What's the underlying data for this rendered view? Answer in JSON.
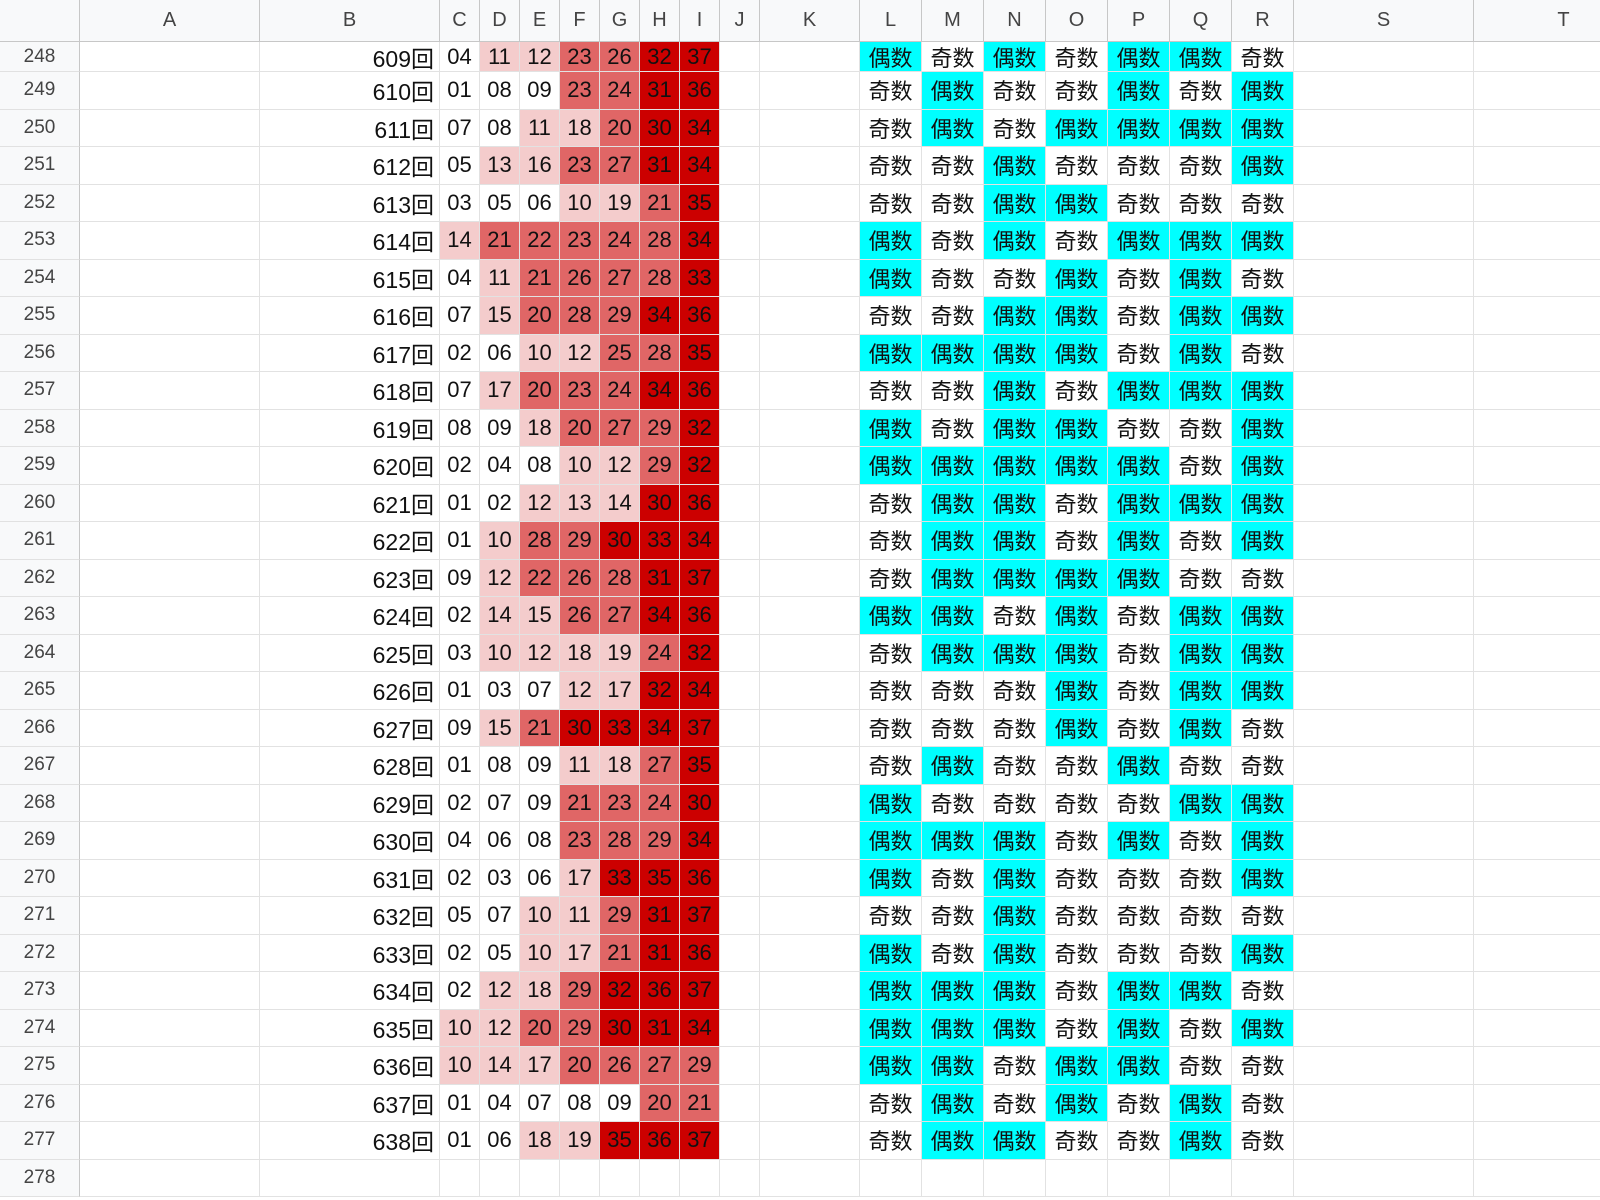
{
  "sheet": {
    "columns": [
      "A",
      "B",
      "C",
      "D",
      "E",
      "F",
      "G",
      "H",
      "I",
      "J",
      "K",
      "L",
      "M",
      "N",
      "O",
      "P",
      "Q",
      "R",
      "S",
      "T"
    ],
    "row_numbers": [
      248,
      249,
      250,
      251,
      252,
      253,
      254,
      255,
      256,
      257,
      258,
      259,
      260,
      261,
      262,
      263,
      264,
      265,
      266,
      267,
      268,
      269,
      270,
      271,
      272,
      273,
      274,
      275,
      276,
      277,
      278
    ],
    "rows": [
      {
        "draw": "609回",
        "nums": [
          "04",
          "11",
          "12",
          "23",
          "26",
          "32",
          "37"
        ],
        "parity": [
          "偶数",
          "奇数",
          "偶数",
          "奇数",
          "偶数",
          "偶数",
          "奇数"
        ]
      },
      {
        "draw": "610回",
        "nums": [
          "01",
          "08",
          "09",
          "23",
          "24",
          "31",
          "36"
        ],
        "parity": [
          "奇数",
          "偶数",
          "奇数",
          "奇数",
          "偶数",
          "奇数",
          "偶数"
        ]
      },
      {
        "draw": "611回",
        "nums": [
          "07",
          "08",
          "11",
          "18",
          "20",
          "30",
          "34"
        ],
        "parity": [
          "奇数",
          "偶数",
          "奇数",
          "偶数",
          "偶数",
          "偶数",
          "偶数"
        ]
      },
      {
        "draw": "612回",
        "nums": [
          "05",
          "13",
          "16",
          "23",
          "27",
          "31",
          "34"
        ],
        "parity": [
          "奇数",
          "奇数",
          "偶数",
          "奇数",
          "奇数",
          "奇数",
          "偶数"
        ]
      },
      {
        "draw": "613回",
        "nums": [
          "03",
          "05",
          "06",
          "10",
          "19",
          "21",
          "35"
        ],
        "parity": [
          "奇数",
          "奇数",
          "偶数",
          "偶数",
          "奇数",
          "奇数",
          "奇数"
        ]
      },
      {
        "draw": "614回",
        "nums": [
          "14",
          "21",
          "22",
          "23",
          "24",
          "28",
          "34"
        ],
        "parity": [
          "偶数",
          "奇数",
          "偶数",
          "奇数",
          "偶数",
          "偶数",
          "偶数"
        ]
      },
      {
        "draw": "615回",
        "nums": [
          "04",
          "11",
          "21",
          "26",
          "27",
          "28",
          "33"
        ],
        "parity": [
          "偶数",
          "奇数",
          "奇数",
          "偶数",
          "奇数",
          "偶数",
          "奇数"
        ]
      },
      {
        "draw": "616回",
        "nums": [
          "07",
          "15",
          "20",
          "28",
          "29",
          "34",
          "36"
        ],
        "parity": [
          "奇数",
          "奇数",
          "偶数",
          "偶数",
          "奇数",
          "偶数",
          "偶数"
        ]
      },
      {
        "draw": "617回",
        "nums": [
          "02",
          "06",
          "10",
          "12",
          "25",
          "28",
          "35"
        ],
        "parity": [
          "偶数",
          "偶数",
          "偶数",
          "偶数",
          "奇数",
          "偶数",
          "奇数"
        ]
      },
      {
        "draw": "618回",
        "nums": [
          "07",
          "17",
          "20",
          "23",
          "24",
          "34",
          "36"
        ],
        "parity": [
          "奇数",
          "奇数",
          "偶数",
          "奇数",
          "偶数",
          "偶数",
          "偶数"
        ]
      },
      {
        "draw": "619回",
        "nums": [
          "08",
          "09",
          "18",
          "20",
          "27",
          "29",
          "32"
        ],
        "parity": [
          "偶数",
          "奇数",
          "偶数",
          "偶数",
          "奇数",
          "奇数",
          "偶数"
        ]
      },
      {
        "draw": "620回",
        "nums": [
          "02",
          "04",
          "08",
          "10",
          "12",
          "29",
          "32"
        ],
        "parity": [
          "偶数",
          "偶数",
          "偶数",
          "偶数",
          "偶数",
          "奇数",
          "偶数"
        ]
      },
      {
        "draw": "621回",
        "nums": [
          "01",
          "02",
          "12",
          "13",
          "14",
          "30",
          "36"
        ],
        "parity": [
          "奇数",
          "偶数",
          "偶数",
          "奇数",
          "偶数",
          "偶数",
          "偶数"
        ]
      },
      {
        "draw": "622回",
        "nums": [
          "01",
          "10",
          "28",
          "29",
          "30",
          "33",
          "34"
        ],
        "parity": [
          "奇数",
          "偶数",
          "偶数",
          "奇数",
          "偶数",
          "奇数",
          "偶数"
        ]
      },
      {
        "draw": "623回",
        "nums": [
          "09",
          "12",
          "22",
          "26",
          "28",
          "31",
          "37"
        ],
        "parity": [
          "奇数",
          "偶数",
          "偶数",
          "偶数",
          "偶数",
          "奇数",
          "奇数"
        ]
      },
      {
        "draw": "624回",
        "nums": [
          "02",
          "14",
          "15",
          "26",
          "27",
          "34",
          "36"
        ],
        "parity": [
          "偶数",
          "偶数",
          "奇数",
          "偶数",
          "奇数",
          "偶数",
          "偶数"
        ]
      },
      {
        "draw": "625回",
        "nums": [
          "03",
          "10",
          "12",
          "18",
          "19",
          "24",
          "32"
        ],
        "parity": [
          "奇数",
          "偶数",
          "偶数",
          "偶数",
          "奇数",
          "偶数",
          "偶数"
        ]
      },
      {
        "draw": "626回",
        "nums": [
          "01",
          "03",
          "07",
          "12",
          "17",
          "32",
          "34"
        ],
        "parity": [
          "奇数",
          "奇数",
          "奇数",
          "偶数",
          "奇数",
          "偶数",
          "偶数"
        ]
      },
      {
        "draw": "627回",
        "nums": [
          "09",
          "15",
          "21",
          "30",
          "33",
          "34",
          "37"
        ],
        "parity": [
          "奇数",
          "奇数",
          "奇数",
          "偶数",
          "奇数",
          "偶数",
          "奇数"
        ]
      },
      {
        "draw": "628回",
        "nums": [
          "01",
          "08",
          "09",
          "11",
          "18",
          "27",
          "35"
        ],
        "parity": [
          "奇数",
          "偶数",
          "奇数",
          "奇数",
          "偶数",
          "奇数",
          "奇数"
        ]
      },
      {
        "draw": "629回",
        "nums": [
          "02",
          "07",
          "09",
          "21",
          "23",
          "24",
          "30"
        ],
        "parity": [
          "偶数",
          "奇数",
          "奇数",
          "奇数",
          "奇数",
          "偶数",
          "偶数"
        ]
      },
      {
        "draw": "630回",
        "nums": [
          "04",
          "06",
          "08",
          "23",
          "28",
          "29",
          "34"
        ],
        "parity": [
          "偶数",
          "偶数",
          "偶数",
          "奇数",
          "偶数",
          "奇数",
          "偶数"
        ]
      },
      {
        "draw": "631回",
        "nums": [
          "02",
          "03",
          "06",
          "17",
          "33",
          "35",
          "36"
        ],
        "parity": [
          "偶数",
          "奇数",
          "偶数",
          "奇数",
          "奇数",
          "奇数",
          "偶数"
        ]
      },
      {
        "draw": "632回",
        "nums": [
          "05",
          "07",
          "10",
          "11",
          "29",
          "31",
          "37"
        ],
        "parity": [
          "奇数",
          "奇数",
          "偶数",
          "奇数",
          "奇数",
          "奇数",
          "奇数"
        ]
      },
      {
        "draw": "633回",
        "nums": [
          "02",
          "05",
          "10",
          "17",
          "21",
          "31",
          "36"
        ],
        "parity": [
          "偶数",
          "奇数",
          "偶数",
          "奇数",
          "奇数",
          "奇数",
          "偶数"
        ]
      },
      {
        "draw": "634回",
        "nums": [
          "02",
          "12",
          "18",
          "29",
          "32",
          "36",
          "37"
        ],
        "parity": [
          "偶数",
          "偶数",
          "偶数",
          "奇数",
          "偶数",
          "偶数",
          "奇数"
        ]
      },
      {
        "draw": "635回",
        "nums": [
          "10",
          "12",
          "20",
          "29",
          "30",
          "31",
          "34"
        ],
        "parity": [
          "偶数",
          "偶数",
          "偶数",
          "奇数",
          "偶数",
          "奇数",
          "偶数"
        ]
      },
      {
        "draw": "636回",
        "nums": [
          "10",
          "14",
          "17",
          "20",
          "26",
          "27",
          "29"
        ],
        "parity": [
          "偶数",
          "偶数",
          "奇数",
          "偶数",
          "偶数",
          "奇数",
          "奇数"
        ]
      },
      {
        "draw": "637回",
        "nums": [
          "01",
          "04",
          "07",
          "08",
          "09",
          "20",
          "21"
        ],
        "parity": [
          "奇数",
          "偶数",
          "奇数",
          "偶数",
          "奇数",
          "偶数",
          "奇数"
        ]
      },
      {
        "draw": "638回",
        "nums": [
          "01",
          "06",
          "18",
          "19",
          "35",
          "36",
          "37"
        ],
        "parity": [
          "奇数",
          "偶数",
          "偶数",
          "奇数",
          "奇数",
          "偶数",
          "奇数"
        ]
      }
    ]
  },
  "colors": {
    "even_fill": "#00ffff",
    "odd_fill": "#ffffff",
    "scale": [
      "#ffffff",
      "#f4cccc",
      "#e06666",
      "#cc0000"
    ],
    "header_bg": "#f8f9fa"
  },
  "labels": {
    "even": "偶数",
    "odd": "奇数"
  }
}
